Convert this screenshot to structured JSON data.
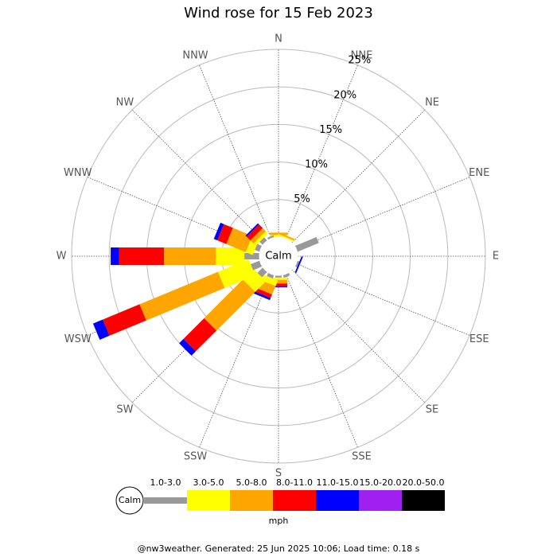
{
  "chart_data": {
    "type": "windrose",
    "title": "Wind rose for 15 Feb 2023",
    "directions": [
      "N",
      "NNE",
      "NE",
      "ENE",
      "E",
      "ESE",
      "SE",
      "SSE",
      "S",
      "SSW",
      "SW",
      "WSW",
      "W",
      "WNW",
      "NW",
      "NNW"
    ],
    "calm_label": "Calm",
    "units": "mph",
    "rlim": [
      0,
      25
    ],
    "rticks": [
      {
        "value": 5,
        "label": "5%"
      },
      {
        "value": 10,
        "label": "10%"
      },
      {
        "value": 15,
        "label": "15%"
      },
      {
        "value": 20,
        "label": "20%"
      },
      {
        "value": 25,
        "label": "25%"
      }
    ],
    "series": [
      {
        "name": "1.0-3.0",
        "color": "#999999",
        "values": [
          0,
          0,
          0,
          3.1,
          0,
          0.3,
          0,
          0.4,
          0.3,
          0.5,
          1.0,
          1.3,
          2.0,
          0.7,
          0.6,
          0.3
        ]
      },
      {
        "name": "3.0-5.0",
        "color": "#ffff00",
        "values": [
          0.3,
          0.2,
          0,
          0,
          0,
          0,
          0,
          0,
          0.3,
          0.8,
          2.0,
          4.4,
          3.8,
          1.0,
          0.4,
          0
        ]
      },
      {
        "name": "5.0-8.0",
        "color": "#ffa500",
        "values": [
          0.3,
          0.2,
          0,
          0,
          0,
          0,
          0,
          0,
          0.5,
          1.2,
          7.3,
          11.3,
          6.9,
          2.8,
          0.6,
          0
        ]
      },
      {
        "name": "8.0-11.0",
        "color": "#ff0000",
        "values": [
          0,
          0,
          0,
          0,
          0,
          0,
          0,
          0,
          0.4,
          0.5,
          3.9,
          5.3,
          6.0,
          1.3,
          0.7,
          0
        ]
      },
      {
        "name": "11.0-15.0",
        "color": "#0000ff",
        "values": [
          0,
          0,
          0,
          0,
          0,
          0.2,
          0,
          0,
          0.1,
          0.3,
          0.8,
          1.4,
          1.1,
          0.5,
          0.2,
          0
        ]
      },
      {
        "name": "15.0-20.0",
        "color": "#a020f0",
        "values": [
          0,
          0,
          0,
          0,
          0,
          0,
          0,
          0,
          0,
          0,
          0,
          0,
          0,
          0,
          0,
          0
        ]
      },
      {
        "name": "20.0-50.0",
        "color": "#000000",
        "values": [
          0,
          0,
          0,
          0,
          0,
          0,
          0,
          0,
          0,
          0,
          0,
          0,
          0,
          0,
          0,
          0
        ]
      }
    ]
  },
  "footer": "@nw3weather. Generated: 25 Jun 2025 10:06; Load time: 0.18 s"
}
